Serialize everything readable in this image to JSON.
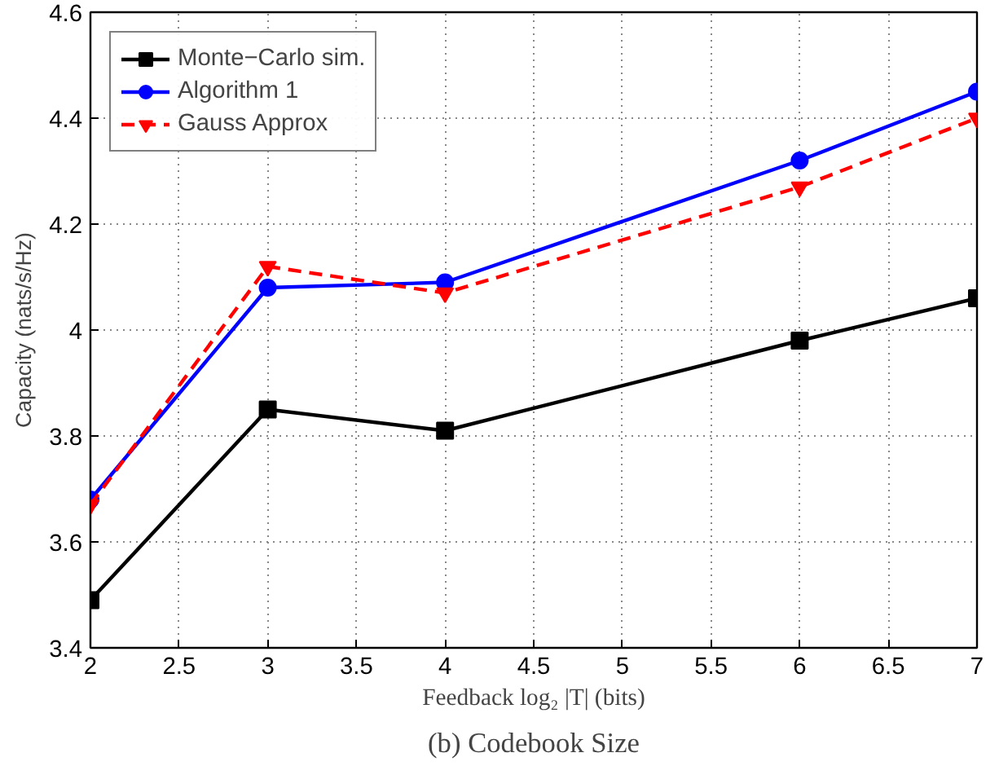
{
  "chart_data": {
    "type": "line",
    "title": "(b) Codebook Size",
    "xlabel": "Feedback log₂ |T| (bits)",
    "ylabel": "Capacity (nats/s/Hz)",
    "x": [
      2,
      3,
      4,
      6,
      7
    ],
    "series": [
      {
        "name": "Monte−Carlo sim.",
        "color": "#000000",
        "marker": "square",
        "line_style": "solid",
        "values": [
          3.49,
          3.85,
          3.81,
          3.98,
          4.06
        ]
      },
      {
        "name": "Algorithm 1",
        "color": "#0000ff",
        "marker": "circle",
        "line_style": "solid",
        "values": [
          3.68,
          4.08,
          4.09,
          4.32,
          4.45
        ]
      },
      {
        "name": "Gauss Approx",
        "color": "#ff0000",
        "marker": "triangle",
        "line_style": "dashed",
        "values": [
          3.67,
          4.12,
          4.07,
          4.27,
          4.4
        ]
      }
    ],
    "xlim": [
      2,
      7
    ],
    "xticks": [
      2,
      2.5,
      3,
      3.5,
      4,
      4.5,
      5,
      5.5,
      6,
      6.5,
      7
    ],
    "ylim": [
      3.4,
      4.6
    ],
    "yticks": [
      3.4,
      3.6,
      3.8,
      4,
      4.2,
      4.4,
      4.6
    ],
    "grid": true,
    "legend": "top left"
  }
}
